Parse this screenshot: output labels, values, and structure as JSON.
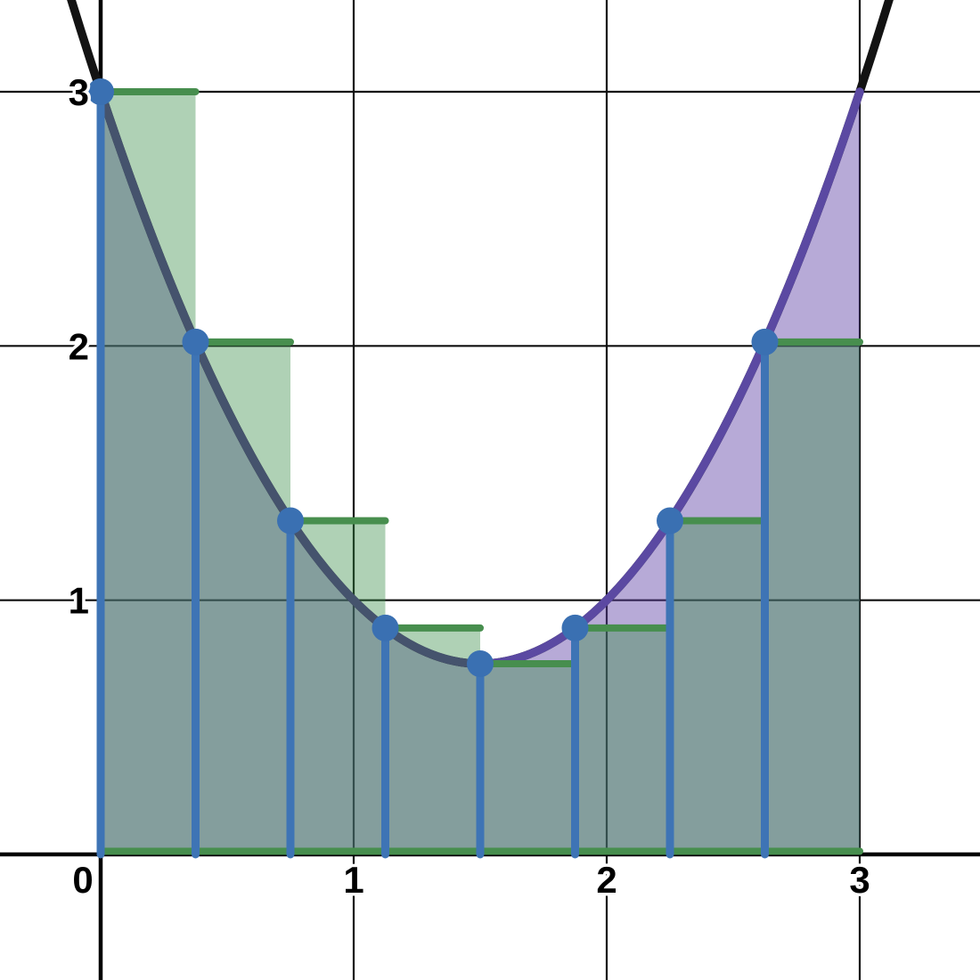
{
  "chart_data": {
    "type": "area",
    "title": "",
    "description": "Parabola with left Riemann sum rectangles: area under curve shaded purple, rectangles shaded green",
    "function": {
      "formula": "y = x^2 - 3x + 3",
      "coefficients": {
        "a": 1,
        "b": -3,
        "c": 3
      },
      "vertex": {
        "x": 1.5,
        "y": 0.75
      },
      "curve_segments": [
        {
          "from": -0.27,
          "to": 3.27,
          "color": "#131313",
          "name": "function-curve-outer"
        },
        {
          "from": 0,
          "to": 1.5,
          "color": "#45536d",
          "name": "function-curve-left"
        },
        {
          "from": 1.5,
          "to": 3,
          "color": "#5b49a2",
          "name": "function-curve-right"
        }
      ]
    },
    "riemann": {
      "method": "left",
      "interval": [
        0,
        3
      ],
      "n": 8,
      "dx": 0.375,
      "sample_x": [
        0,
        0.375,
        0.75,
        1.125,
        1.5,
        1.875,
        2.25,
        2.625
      ],
      "sample_y": [
        3,
        2.015625,
        1.3125,
        0.890625,
        0.75,
        0.890625,
        1.3125,
        2.015625
      ]
    },
    "axes": {
      "x": {
        "min": -0.39789,
        "max": 3.47535,
        "ticks": [
          {
            "value": 0,
            "label": "0",
            "gridline": false,
            "label_offset_x": -20
          },
          {
            "value": 1,
            "label": "1",
            "gridline": true,
            "label_offset_x": 0
          },
          {
            "value": 2,
            "label": "2",
            "gridline": true,
            "label_offset_x": 0
          },
          {
            "value": 3,
            "label": "3",
            "gridline": true,
            "label_offset_x": 0
          }
        ]
      },
      "y": {
        "min": -0.49416,
        "max": 3.36098,
        "ticks": [
          {
            "value": 1,
            "label": "1",
            "gridline": true
          },
          {
            "value": 2,
            "label": "2",
            "gridline": true
          },
          {
            "value": 3,
            "label": "3",
            "gridline": true
          }
        ]
      },
      "grid": true,
      "grid_step": 1
    },
    "styles": {
      "background": "#ffffff",
      "grid_color": "#0f0f0f",
      "grid_width": 2.2,
      "axis_color": "#000000",
      "axis_width": 4.5,
      "area_fill": "#6042a6",
      "area_fill_opacity": 0.45,
      "rect_fill": "#388c46",
      "rect_fill_opacity": 0.4,
      "curve_width": 9.5,
      "segment_color": "#478e4e",
      "segment_width": 8,
      "vertical_color": "#3e74b5",
      "vertical_width": 9,
      "dot_color": "#3a70b2",
      "dot_radius": 15,
      "label_color": "#000000",
      "label_halo": "#ffffff",
      "label_font_size": 42
    }
  }
}
